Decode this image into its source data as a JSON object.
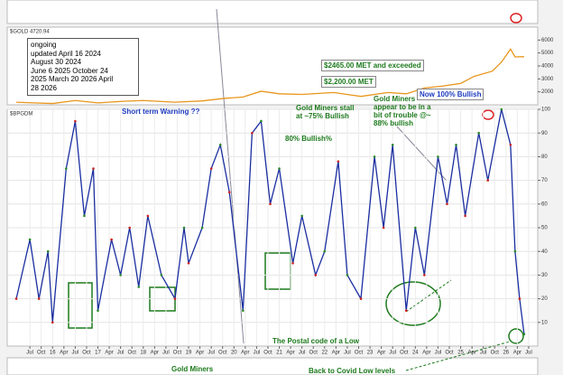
{
  "chart_data": [
    {
      "type": "line",
      "title": "$GOLD 4720.94",
      "color": "#e8961c",
      "x": [
        2015.2,
        2015.6,
        2016.0,
        2016.5,
        2017.0,
        2017.6,
        2018.0,
        2018.7,
        2019.3,
        2019.8,
        2020.2,
        2020.6,
        2021.0,
        2021.5,
        2022.2,
        2022.8,
        2023.4,
        2023.8,
        2024.2,
        2024.6,
        2025.0,
        2025.3,
        2025.7,
        2025.9,
        2026.1,
        2026.2,
        2026.4
      ],
      "values": [
        1200,
        1150,
        1100,
        1330,
        1150,
        1280,
        1330,
        1200,
        1300,
        1500,
        1600,
        2050,
        1850,
        1800,
        1950,
        1650,
        1950,
        1850,
        2300,
        2450,
        2650,
        3200,
        3600,
        4300,
        5300,
        4700,
        4720
      ],
      "xlim": [
        2015,
        2026.7
      ],
      "ylim": [
        1000,
        7000
      ],
      "yticks": [
        2000,
        3000,
        4000,
        5000,
        6000
      ]
    },
    {
      "type": "line",
      "title": "$BPGDM",
      "color": "#1a2ea0",
      "x": [
        2015.2,
        2015.5,
        2015.7,
        2015.9,
        2016.0,
        2016.3,
        2016.5,
        2016.7,
        2016.9,
        2017.0,
        2017.3,
        2017.5,
        2017.7,
        2017.9,
        2018.1,
        2018.4,
        2018.7,
        2018.9,
        2019.0,
        2019.3,
        2019.5,
        2019.7,
        2019.9,
        2020.2,
        2020.4,
        2020.6,
        2020.8,
        2021.0,
        2021.3,
        2021.5,
        2021.8,
        2022.0,
        2022.3,
        2022.5,
        2022.8,
        2023.1,
        2023.3,
        2023.5,
        2023.8,
        2024.0,
        2024.2,
        2024.5,
        2024.7,
        2024.9,
        2025.1,
        2025.4,
        2025.6,
        2025.9,
        2026.1,
        2026.2,
        2026.3,
        2026.4
      ],
      "values": [
        20,
        45,
        20,
        40,
        10,
        75,
        95,
        55,
        75,
        15,
        45,
        30,
        50,
        25,
        55,
        30,
        20,
        50,
        35,
        50,
        75,
        85,
        65,
        15,
        90,
        95,
        60,
        75,
        35,
        55,
        30,
        40,
        78,
        30,
        20,
        80,
        50,
        85,
        15,
        50,
        30,
        80,
        60,
        85,
        55,
        90,
        70,
        100,
        85,
        40,
        20,
        5
      ],
      "xlim": [
        2015,
        2026.7
      ],
      "ylim": [
        0,
        100
      ],
      "yticks": [
        10,
        20,
        30,
        40,
        50,
        60,
        70,
        80,
        90,
        100
      ],
      "xticks": [
        {
          "value": 2015.5,
          "label": "Jul"
        },
        {
          "value": 2015.75,
          "label": "Oct"
        },
        {
          "value": 2016,
          "label": "16"
        },
        {
          "value": 2016.25,
          "label": "Apr"
        },
        {
          "value": 2016.5,
          "label": "Jul"
        },
        {
          "value": 2016.75,
          "label": "Oct"
        },
        {
          "value": 2017,
          "label": "17"
        },
        {
          "value": 2017.25,
          "label": "Apr"
        },
        {
          "value": 2017.5,
          "label": "Jul"
        },
        {
          "value": 2017.75,
          "label": "Oct"
        },
        {
          "value": 2018,
          "label": "18"
        },
        {
          "value": 2018.25,
          "label": "Apr"
        },
        {
          "value": 2018.5,
          "label": "Jul"
        },
        {
          "value": 2018.75,
          "label": "Oct"
        },
        {
          "value": 2019,
          "label": "19"
        },
        {
          "value": 2019.25,
          "label": "Apr"
        },
        {
          "value": 2019.5,
          "label": "Jul"
        },
        {
          "value": 2019.75,
          "label": "Oct"
        },
        {
          "value": 2020,
          "label": "20"
        },
        {
          "value": 2020.25,
          "label": "Apr"
        },
        {
          "value": 2020.5,
          "label": "Jul"
        },
        {
          "value": 2020.75,
          "label": "Oct"
        },
        {
          "value": 2021,
          "label": "21"
        },
        {
          "value": 2021.25,
          "label": "Apr"
        },
        {
          "value": 2021.5,
          "label": "Jul"
        },
        {
          "value": 2021.75,
          "label": "Oct"
        },
        {
          "value": 2022,
          "label": "22"
        },
        {
          "value": 2022.25,
          "label": "Apr"
        },
        {
          "value": 2022.5,
          "label": "Jul"
        },
        {
          "value": 2022.75,
          "label": "Oct"
        },
        {
          "value": 2023,
          "label": "23"
        },
        {
          "value": 2023.25,
          "label": "Apr"
        },
        {
          "value": 2023.5,
          "label": "Jul"
        },
        {
          "value": 2023.75,
          "label": "Oct"
        },
        {
          "value": 2024,
          "label": "24"
        },
        {
          "value": 2024.25,
          "label": "Apr"
        },
        {
          "value": 2024.5,
          "label": "Jul"
        },
        {
          "value": 2024.75,
          "label": "Oct"
        },
        {
          "value": 2025,
          "label": "25"
        },
        {
          "value": 2025.25,
          "label": "Apr"
        },
        {
          "value": 2025.5,
          "label": "Jul"
        },
        {
          "value": 2025.75,
          "label": "Oct"
        },
        {
          "value": 2026,
          "label": "26"
        },
        {
          "value": 2026.25,
          "label": "Apr"
        },
        {
          "value": 2026.5,
          "label": "Jul"
        }
      ],
      "grid": true
    }
  ],
  "notes": [
    "ongoing",
    "updated April 16 2024",
    "August 30 2024",
    "June 6 2025 October 24",
    "2025 March 20 2026 April",
    "28 2026"
  ],
  "annotations": [
    "$2465.00 MET and exceeded",
    "$2,200.00 MET",
    "Short term Warning ??",
    "Gold Miners stall at ~75% Bullish",
    "80% Bullish%",
    "Gold Miners appear to be in a bit of trouble @~ 88% bullish",
    "Now 100% Bullish",
    "The Postal code of a Low",
    "Gold Miners",
    "Back to Covid Low levels"
  ]
}
